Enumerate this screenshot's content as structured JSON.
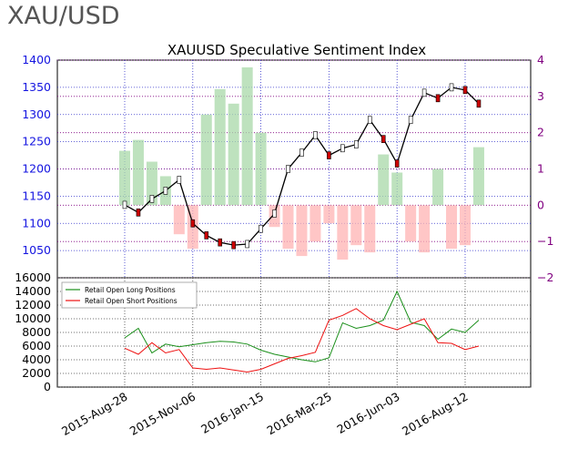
{
  "header": {
    "ticker": "XAU/USD"
  },
  "chart_data": [
    {
      "type": "candlestick",
      "title": "XAUUSD Speculative Sentiment Index",
      "left_axis": {
        "ticks": [
          1050,
          1100,
          1150,
          1200,
          1250,
          1300,
          1350,
          1400
        ],
        "ylim": [
          1000,
          1400
        ],
        "color": "#1515e0"
      },
      "right_axis": {
        "ticks": [
          -2,
          -1,
          0,
          1,
          2,
          3,
          4
        ],
        "ylim": [
          -2,
          4
        ],
        "color": "#800080"
      },
      "grid": true,
      "series": [
        {
          "kind": "price",
          "x": [
            "2015-08-28",
            "2015-09-11",
            "2015-09-25",
            "2015-10-09",
            "2015-10-23",
            "2015-11-06",
            "2015-11-20",
            "2015-12-04",
            "2015-12-18",
            "2016-01-01",
            "2016-01-15",
            "2016-01-29",
            "2016-02-12",
            "2016-02-26",
            "2016-03-11",
            "2016-03-25",
            "2016-04-08",
            "2016-04-22",
            "2016-05-06",
            "2016-05-20",
            "2016-06-03",
            "2016-06-17",
            "2016-07-01",
            "2016-07-15",
            "2016-07-29",
            "2016-08-12",
            "2016-08-26"
          ],
          "values": [
            1134,
            1120,
            1145,
            1160,
            1180,
            1100,
            1078,
            1065,
            1060,
            1062,
            1090,
            1118,
            1200,
            1230,
            1262,
            1225,
            1238,
            1245,
            1290,
            1255,
            1210,
            1290,
            1340,
            1330,
            1350,
            1345,
            1320
          ]
        },
        {
          "kind": "ssi",
          "x": [
            "2015-08-28",
            "2015-09-11",
            "2015-09-25",
            "2015-10-09",
            "2015-10-23",
            "2015-11-06",
            "2015-11-20",
            "2015-12-04",
            "2015-12-18",
            "2016-01-01",
            "2016-01-15",
            "2016-01-29",
            "2016-02-12",
            "2016-02-26",
            "2016-03-11",
            "2016-03-25",
            "2016-04-08",
            "2016-04-22",
            "2016-05-06",
            "2016-05-20",
            "2016-06-03",
            "2016-06-17",
            "2016-07-01",
            "2016-07-15",
            "2016-07-29",
            "2016-08-12",
            "2016-08-26"
          ],
          "values": [
            1.5,
            1.8,
            1.2,
            0.8,
            -0.8,
            -1.2,
            2.5,
            3.2,
            2.8,
            3.8,
            2.0,
            -0.6,
            -1.2,
            -1.4,
            -1.0,
            -0.5,
            -1.5,
            -1.1,
            -1.3,
            1.4,
            0.9,
            -1.0,
            -1.3,
            1.0,
            -1.2,
            -1.1,
            1.6
          ]
        }
      ]
    },
    {
      "type": "line",
      "ylim": [
        0,
        16000
      ],
      "yticks": [
        0,
        2000,
        4000,
        6000,
        8000,
        10000,
        12000,
        14000,
        16000
      ],
      "x_tick_labels": [
        "2015-Aug-28",
        "2015-Nov-06",
        "2016-Jan-15",
        "2016-Mar-25",
        "2016-Jun-03",
        "2016-Aug-12"
      ],
      "legend_position": "top-left",
      "series": [
        {
          "name": "Retail Open Long Positions",
          "color": "#1a8f1a",
          "x": [
            "2015-08-28",
            "2015-09-11",
            "2015-09-25",
            "2015-10-09",
            "2015-10-23",
            "2015-11-06",
            "2015-11-20",
            "2015-12-04",
            "2015-12-18",
            "2016-01-01",
            "2016-01-15",
            "2016-01-29",
            "2016-02-12",
            "2016-02-26",
            "2016-03-11",
            "2016-03-25",
            "2016-04-08",
            "2016-04-22",
            "2016-05-06",
            "2016-05-20",
            "2016-06-03",
            "2016-06-17",
            "2016-07-01",
            "2016-07-15",
            "2016-07-29",
            "2016-08-12",
            "2016-08-26"
          ],
          "values": [
            7200,
            8600,
            5000,
            6300,
            5900,
            6200,
            6500,
            6700,
            6600,
            6300,
            5400,
            4800,
            4400,
            4000,
            3700,
            4300,
            9400,
            8600,
            9000,
            9800,
            14000,
            9500,
            9000,
            7000,
            8500,
            8000,
            9800
          ]
        },
        {
          "name": "Retail Open Short Positions",
          "color": "#ee1111",
          "x": [
            "2015-08-28",
            "2015-09-11",
            "2015-09-25",
            "2015-10-09",
            "2015-10-23",
            "2015-11-06",
            "2015-11-20",
            "2015-12-04",
            "2015-12-18",
            "2016-01-01",
            "2016-01-15",
            "2016-01-29",
            "2016-02-12",
            "2016-02-26",
            "2016-03-11",
            "2016-03-25",
            "2016-04-08",
            "2016-04-22",
            "2016-05-06",
            "2016-05-20",
            "2016-06-03",
            "2016-06-17",
            "2016-07-01",
            "2016-07-15",
            "2016-07-29",
            "2016-08-12",
            "2016-08-26"
          ],
          "values": [
            5700,
            4800,
            6500,
            5000,
            5500,
            2800,
            2600,
            2800,
            2500,
            2200,
            2600,
            3400,
            4200,
            4600,
            5100,
            9800,
            10500,
            11500,
            10000,
            9000,
            8400,
            9200,
            10000,
            6500,
            6400,
            5500,
            6000
          ]
        }
      ]
    }
  ]
}
